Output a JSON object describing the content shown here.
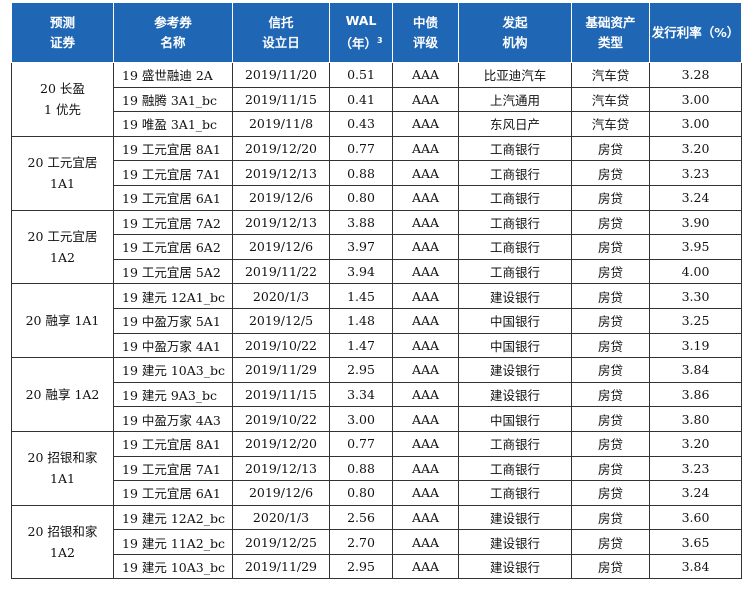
{
  "headers": [
    {
      "l1": "预测",
      "l2": "证券"
    },
    {
      "l1": "参考券",
      "l2": "名称"
    },
    {
      "l1": "信托",
      "l2": "设立日"
    },
    {
      "l1": "WAL",
      "l2": "（年）",
      "sup": "3"
    },
    {
      "l1": "中债",
      "l2": "评级"
    },
    {
      "l1": "发起",
      "l2": "机构"
    },
    {
      "l1": "基础资产",
      "l2": "类型"
    },
    {
      "l1": "发行利率（%）",
      "l2": ""
    }
  ],
  "groups": [
    {
      "l1": "20 长盈",
      "l2": "1 优先",
      "rows": [
        {
          "name": "19 盛世融迪 2A",
          "date": "2019/11/20",
          "wal": "0.51",
          "rating": "AAA",
          "org": "比亚迪汽车",
          "type": "汽车贷",
          "rate": "3.28"
        },
        {
          "name": "19 融腾 3A1_bc",
          "date": "2019/11/15",
          "wal": "0.41",
          "rating": "AAA",
          "org": "上汽通用",
          "type": "汽车贷",
          "rate": "3.00"
        },
        {
          "name": "19 唯盈 3A1_bc",
          "date": "2019/11/8",
          "wal": "0.43",
          "rating": "AAA",
          "org": "东风日产",
          "type": "汽车贷",
          "rate": "3.00"
        }
      ]
    },
    {
      "l1": "20 工元宜居",
      "l2": "1A1",
      "rows": [
        {
          "name": "19 工元宜居 8A1",
          "date": "2019/12/20",
          "wal": "0.77",
          "rating": "AAA",
          "org": "工商银行",
          "type": "房贷",
          "rate": "3.20"
        },
        {
          "name": "19 工元宜居 7A1",
          "date": "2019/12/13",
          "wal": "0.88",
          "rating": "AAA",
          "org": "工商银行",
          "type": "房贷",
          "rate": "3.23"
        },
        {
          "name": "19 工元宜居 6A1",
          "date": "2019/12/6",
          "wal": "0.80",
          "rating": "AAA",
          "org": "工商银行",
          "type": "房贷",
          "rate": "3.24"
        }
      ]
    },
    {
      "l1": "20 工元宜居",
      "l2": "1A2",
      "rows": [
        {
          "name": "19 工元宜居 7A2",
          "date": "2019/12/13",
          "wal": "3.88",
          "rating": "AAA",
          "org": "工商银行",
          "type": "房贷",
          "rate": "3.90"
        },
        {
          "name": "19 工元宜居 6A2",
          "date": "2019/12/6",
          "wal": "3.97",
          "rating": "AAA",
          "org": "工商银行",
          "type": "房贷",
          "rate": "3.95"
        },
        {
          "name": "19 工元宜居 5A2",
          "date": "2019/11/22",
          "wal": "3.94",
          "rating": "AAA",
          "org": "工商银行",
          "type": "房贷",
          "rate": "4.00"
        }
      ]
    },
    {
      "l1": "20 融享 1A1",
      "l2": "",
      "rows": [
        {
          "name": "19 建元 12A1_bc",
          "date": "2020/1/3",
          "wal": "1.45",
          "rating": "AAA",
          "org": "建设银行",
          "type": "房贷",
          "rate": "3.30"
        },
        {
          "name": "19 中盈万家 5A1",
          "date": "2019/12/5",
          "wal": "1.48",
          "rating": "AAA",
          "org": "中国银行",
          "type": "房贷",
          "rate": "3.25"
        },
        {
          "name": "19 中盈万家 4A1",
          "date": "2019/10/22",
          "wal": "1.47",
          "rating": "AAA",
          "org": "中国银行",
          "type": "房贷",
          "rate": "3.19"
        }
      ]
    },
    {
      "l1": "20 融享 1A2",
      "l2": "",
      "rows": [
        {
          "name": "19 建元 10A3_bc",
          "date": "2019/11/29",
          "wal": "2.95",
          "rating": "AAA",
          "org": "建设银行",
          "type": "房贷",
          "rate": "3.84"
        },
        {
          "name": "19 建元 9A3_bc",
          "date": "2019/11/15",
          "wal": "3.34",
          "rating": "AAA",
          "org": "建设银行",
          "type": "房贷",
          "rate": "3.86"
        },
        {
          "name": "19 中盈万家 4A3",
          "date": "2019/10/22",
          "wal": "3.00",
          "rating": "AAA",
          "org": "中国银行",
          "type": "房贷",
          "rate": "3.80"
        }
      ]
    },
    {
      "l1": "20 招银和家",
      "l2": "1A1",
      "rows": [
        {
          "name": "19 工元宜居 8A1",
          "date": "2019/12/20",
          "wal": "0.77",
          "rating": "AAA",
          "org": "工商银行",
          "type": "房贷",
          "rate": "3.20"
        },
        {
          "name": "19 工元宜居 7A1",
          "date": "2019/12/13",
          "wal": "0.88",
          "rating": "AAA",
          "org": "工商银行",
          "type": "房贷",
          "rate": "3.23"
        },
        {
          "name": "19 工元宜居 6A1",
          "date": "2019/12/6",
          "wal": "0.80",
          "rating": "AAA",
          "org": "工商银行",
          "type": "房贷",
          "rate": "3.24"
        }
      ]
    },
    {
      "l1": "20 招银和家",
      "l2": "1A2",
      "rows": [
        {
          "name": "19 建元 12A2_bc",
          "date": "2020/1/3",
          "wal": "2.56",
          "rating": "AAA",
          "org": "建设银行",
          "type": "房贷",
          "rate": "3.60"
        },
        {
          "name": "19 建元 11A2_bc",
          "date": "2019/12/25",
          "wal": "2.70",
          "rating": "AAA",
          "org": "建设银行",
          "type": "房贷",
          "rate": "3.65"
        },
        {
          "name": "19 建元 10A3_bc",
          "date": "2019/11/29",
          "wal": "2.95",
          "rating": "AAA",
          "org": "建设银行",
          "type": "房贷",
          "rate": "3.84"
        }
      ]
    }
  ]
}
